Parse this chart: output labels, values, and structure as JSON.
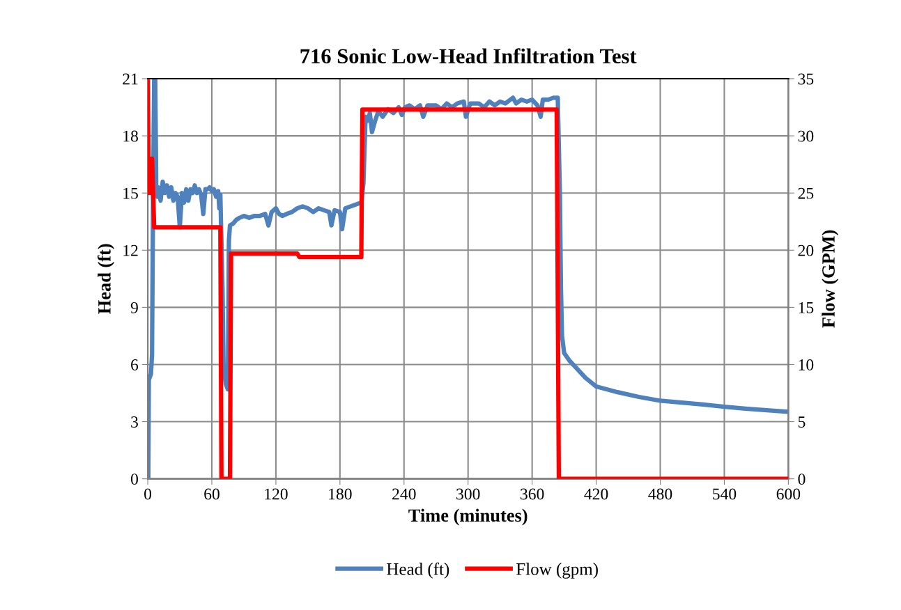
{
  "chart_data": {
    "type": "line",
    "title": "716 Sonic Low-Head Infiltration Test",
    "xlabel": "Time (minutes)",
    "ylabel": "Head (ft)",
    "y2label": "Flow (GPM)",
    "xlim": [
      0,
      600
    ],
    "xticks": [
      0,
      60,
      120,
      180,
      240,
      300,
      360,
      420,
      480,
      540,
      600
    ],
    "ylim": [
      0,
      21
    ],
    "yticks": [
      0,
      3,
      6,
      9,
      12,
      15,
      18,
      21
    ],
    "y2lim": [
      0,
      35
    ],
    "y2ticks": [
      0,
      5,
      10,
      15,
      20,
      25,
      30,
      35
    ],
    "grid": true,
    "legend": "bottom",
    "marker": "none",
    "line_style": "solid",
    "series": [
      {
        "name": "Head (ft)",
        "color": "#4f81bd",
        "axis": "y",
        "x": [
          0.5,
          1,
          3,
          4,
          5,
          6,
          7,
          8,
          9,
          10,
          12,
          14,
          16,
          18,
          20,
          22,
          24,
          26,
          28,
          30,
          32,
          34,
          36,
          38,
          40,
          42,
          44,
          46,
          48,
          50,
          52,
          54,
          56,
          58,
          60,
          62,
          64,
          66,
          67,
          68,
          70,
          71,
          73,
          75,
          76,
          77,
          80,
          83,
          86,
          90,
          95,
          100,
          105,
          110,
          113,
          116,
          120,
          123,
          126,
          130,
          135,
          140,
          145,
          150,
          155,
          160,
          165,
          170,
          172,
          175,
          180,
          182,
          185,
          190,
          195,
          200,
          202,
          204,
          206,
          208,
          210,
          213,
          216,
          220,
          225,
          230,
          235,
          238,
          241,
          245,
          250,
          255,
          258,
          262,
          270,
          275,
          280,
          285,
          290,
          296,
          298,
          302,
          310,
          315,
          320,
          325,
          330,
          335,
          342,
          345,
          350,
          355,
          360,
          365,
          368,
          370,
          375,
          380,
          384,
          386,
          387,
          388,
          390,
          395,
          400,
          410,
          420,
          440,
          460,
          480,
          500,
          520,
          540,
          560,
          580,
          600
        ],
        "values": [
          0,
          5.2,
          5.5,
          6.5,
          15,
          21,
          21,
          15,
          14.8,
          15.3,
          14.6,
          15.6,
          15,
          15.4,
          14.8,
          15.3,
          14.6,
          15.0,
          14.8,
          13.2,
          15.0,
          14.5,
          15.2,
          14.6,
          15.2,
          15.0,
          15.4,
          15.0,
          15.2,
          14.9,
          13.9,
          15.2,
          15.2,
          15.3,
          15.1,
          15.2,
          14.8,
          15.1,
          14.2,
          14.9,
          10,
          6,
          5.0,
          4.7,
          12.5,
          13.3,
          13.4,
          13.6,
          13.7,
          13.8,
          13.7,
          13.8,
          13.8,
          13.9,
          13.3,
          14.0,
          14.2,
          13.9,
          13.8,
          13.9,
          14.0,
          14.2,
          14.3,
          14.2,
          14.0,
          14.2,
          14.1,
          14.0,
          13.3,
          14.1,
          14.0,
          13.1,
          14.2,
          14.3,
          14.4,
          14.5,
          15.5,
          19.0,
          18.8,
          19.2,
          18.2,
          18.8,
          19.3,
          19.0,
          19.4,
          19.2,
          19.5,
          19.1,
          19.5,
          19.6,
          19.4,
          19.6,
          19.0,
          19.6,
          19.6,
          19.4,
          19.7,
          19.5,
          19.7,
          19.8,
          19.0,
          19.7,
          19.7,
          19.5,
          19.8,
          19.6,
          19.8,
          19.7,
          20.0,
          19.7,
          19.9,
          19.8,
          19.9,
          19.6,
          19.0,
          19.9,
          19.9,
          20.0,
          20.0,
          15,
          10,
          7.5,
          6.6,
          6.2,
          5.9,
          5.3,
          4.85,
          4.55,
          4.3,
          4.1,
          4.0,
          3.9,
          3.78,
          3.68,
          3.6,
          3.52
        ]
      },
      {
        "name": "Flow (gpm)",
        "color": "#ff0000",
        "axis": "y2",
        "x": [
          0,
          1,
          2,
          3,
          4,
          5,
          6,
          68,
          69,
          77,
          78,
          140,
          142,
          200,
          201,
          383,
          385,
          600
        ],
        "values": [
          35,
          25,
          27,
          25,
          28,
          25,
          22,
          22,
          0,
          0,
          19.7,
          19.7,
          19.4,
          19.4,
          32.3,
          32.3,
          0,
          0
        ]
      }
    ]
  }
}
